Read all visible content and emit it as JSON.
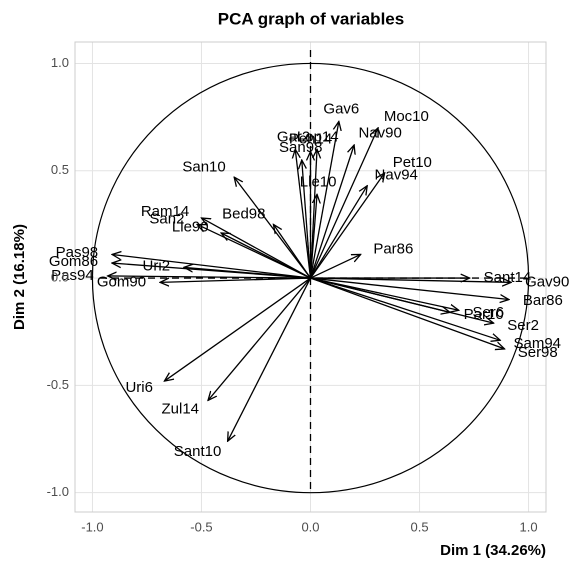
{
  "chart_data": {
    "type": "pca-variables",
    "title": "PCA graph of variables",
    "x_label": "Dim 1 (34.26%)",
    "y_label": "Dim 2 (16.18%)",
    "xlim": [
      -1.08,
      1.08
    ],
    "ylim": [
      -1.09,
      1.1
    ],
    "xticks": [
      {
        "value": -1,
        "label": "-1.0"
      },
      -0.5,
      {
        "value": 0,
        "label": "0.0"
      },
      0.5,
      {
        "value": 1,
        "label": "1.0"
      }
    ],
    "yticks": [
      {
        "value": -1,
        "label": "-1.0"
      },
      -0.5,
      {
        "value": 0,
        "label": "0.0"
      },
      0.5,
      {
        "value": 1,
        "label": "1.0"
      }
    ],
    "grid": true,
    "color": "#000000",
    "variables": [
      "Gav6",
      "Lop14",
      "Nav90",
      "Moc10",
      "Pet10",
      "Nav94",
      "Lle10",
      "Pen14",
      "San98",
      "Gar2",
      "San10",
      "Ram14",
      "San2",
      "Lle90",
      "Bed98",
      "Pas98",
      "Gom86",
      "Uri2",
      "Pas94",
      "Gom90",
      "Uri6",
      "Zul14",
      "Sant10",
      "Par86",
      "Sant14",
      "Gav90",
      "Bar86",
      "Ser6",
      "Par10",
      "Ser2",
      "Sam94",
      "Ser98"
    ],
    "x": [
      0.13,
      0.03,
      0.2,
      0.31,
      0.34,
      0.26,
      0.03,
      0.0,
      -0.04,
      -0.07,
      -0.35,
      -0.5,
      -0.52,
      -0.41,
      -0.17,
      -0.91,
      -0.91,
      -0.58,
      -0.93,
      -0.69,
      -0.67,
      -0.47,
      -0.38,
      0.23,
      0.73,
      0.92,
      0.91,
      0.68,
      0.64,
      0.84,
      0.87,
      0.89
    ],
    "y": [
      0.73,
      0.6,
      0.62,
      0.7,
      0.49,
      0.43,
      0.39,
      0.59,
      0.55,
      0.6,
      0.47,
      0.28,
      0.25,
      0.21,
      0.25,
      0.11,
      0.07,
      0.05,
      0.01,
      -0.02,
      -0.48,
      -0.57,
      -0.76,
      0.11,
      0.0,
      -0.02,
      -0.1,
      -0.15,
      -0.16,
      -0.21,
      -0.29,
      -0.33
    ]
  }
}
